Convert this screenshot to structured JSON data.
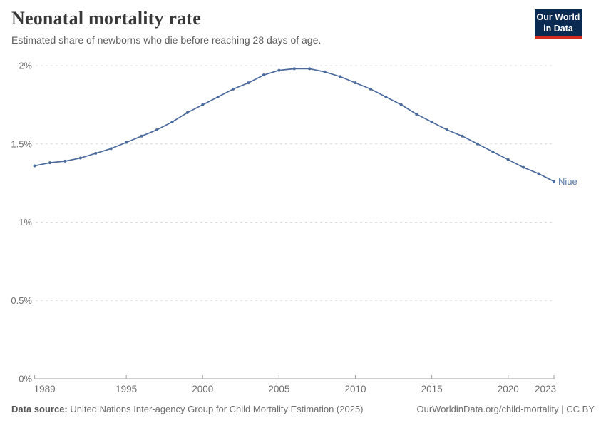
{
  "header": {
    "title": "Neonatal mortality rate",
    "subtitle": "Estimated share of newborns who die before reaching 28 days of age.",
    "logo": {
      "line1": "Our World",
      "line2": "in Data"
    }
  },
  "chart_data": {
    "type": "line",
    "title": "Neonatal mortality rate",
    "xlabel": "",
    "ylabel": "",
    "xlim": [
      1989,
      2023
    ],
    "ylim": [
      0,
      2
    ],
    "grid": "horizontal-dashed",
    "x_ticks": [
      1989,
      1995,
      2000,
      2005,
      2010,
      2015,
      2020,
      2023
    ],
    "y_ticks": [
      0,
      0.5,
      1,
      1.5,
      2
    ],
    "y_tick_labels": [
      "0%",
      "0.5%",
      "1%",
      "1.5%",
      "2%"
    ],
    "series": [
      {
        "name": "Niue",
        "color": "#4c6a9c",
        "label_color": "#5779ab",
        "x": [
          1989,
          1990,
          1991,
          1992,
          1993,
          1994,
          1995,
          1996,
          1997,
          1998,
          1999,
          2000,
          2001,
          2002,
          2003,
          2004,
          2005,
          2006,
          2007,
          2008,
          2009,
          2010,
          2011,
          2012,
          2013,
          2014,
          2015,
          2016,
          2017,
          2018,
          2019,
          2020,
          2021,
          2022,
          2023
        ],
        "values": [
          1.36,
          1.38,
          1.39,
          1.41,
          1.44,
          1.47,
          1.51,
          1.55,
          1.59,
          1.64,
          1.7,
          1.75,
          1.8,
          1.85,
          1.89,
          1.94,
          1.97,
          1.98,
          1.98,
          1.96,
          1.93,
          1.89,
          1.85,
          1.8,
          1.75,
          1.69,
          1.64,
          1.59,
          1.55,
          1.5,
          1.45,
          1.4,
          1.35,
          1.31,
          1.26
        ]
      }
    ],
    "end_label": "Niue"
  },
  "footer": {
    "datasource_label": "Data source:",
    "datasource_text": "United Nations Inter-agency Group for Child Mortality Estimation (2025)",
    "credit_line": "OurWorldinData.org/child-mortality | CC BY"
  },
  "colors": {
    "line": "#4c6a9c",
    "series_label": "#5779ab",
    "gridline": "#dcdcdc",
    "axis": "#a1a1a1",
    "tick_label": "#6e6e6e",
    "title": "#383838",
    "logo_bg": "#0b2a51",
    "logo_red": "#d42b21"
  }
}
